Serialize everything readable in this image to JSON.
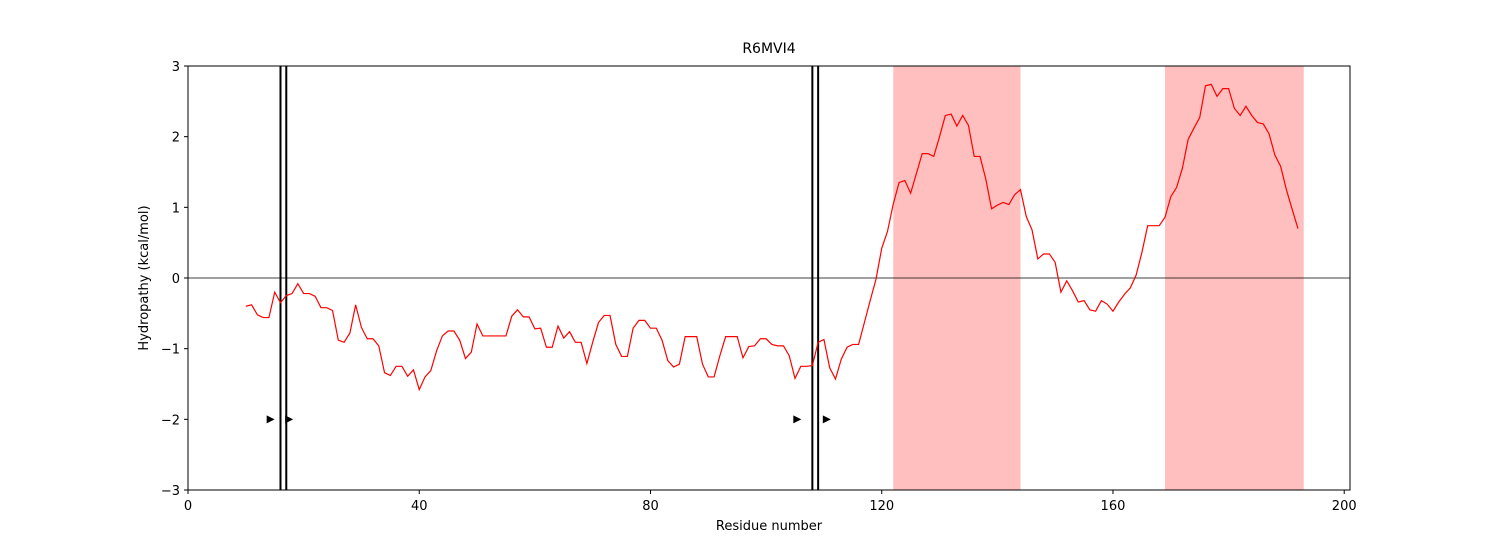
{
  "chart_data": {
    "type": "line",
    "title": "R6MVI4",
    "x_label": "Residue number",
    "y_label": "Hydropathy (kcal/mol)",
    "x": [
      10,
      11,
      12,
      13,
      14,
      15,
      16,
      17,
      18,
      19,
      20,
      21,
      22,
      23,
      24,
      25,
      26,
      27,
      28,
      29,
      30,
      31,
      32,
      33,
      34,
      35,
      36,
      37,
      38,
      39,
      40,
      41,
      42,
      43,
      44,
      45,
      46,
      47,
      48,
      49,
      50,
      51,
      52,
      53,
      54,
      55,
      56,
      57,
      58,
      59,
      60,
      61,
      62,
      63,
      64,
      65,
      66,
      67,
      68,
      69,
      70,
      71,
      72,
      73,
      74,
      75,
      76,
      77,
      78,
      79,
      80,
      81,
      82,
      83,
      84,
      85,
      86,
      87,
      88,
      89,
      90,
      91,
      92,
      93,
      94,
      95,
      96,
      97,
      98,
      99,
      100,
      101,
      102,
      103,
      104,
      105,
      106,
      107,
      108,
      109,
      110,
      111,
      112,
      113,
      114,
      115,
      116,
      117,
      118,
      119,
      120,
      121,
      122,
      123,
      124,
      125,
      126,
      127,
      128,
      129,
      130,
      131,
      132,
      133,
      134,
      135,
      136,
      137,
      138,
      139,
      140,
      141,
      142,
      143,
      144,
      145,
      146,
      147,
      148,
      149,
      150,
      151,
      152,
      153,
      154,
      155,
      156,
      157,
      158,
      159,
      160,
      161,
      162,
      163,
      164,
      165,
      166,
      167,
      168,
      169,
      170,
      171,
      172,
      173,
      174,
      175,
      176,
      177,
      178,
      179,
      180,
      181,
      182,
      183,
      184,
      185,
      186,
      187,
      188,
      189,
      190,
      191,
      192
    ],
    "values": [
      -0.4,
      -0.38,
      -0.52,
      -0.56,
      -0.56,
      -0.2,
      -0.35,
      -0.25,
      -0.22,
      -0.08,
      -0.22,
      -0.22,
      -0.26,
      -0.42,
      -0.42,
      -0.46,
      -0.88,
      -0.91,
      -0.78,
      -0.38,
      -0.7,
      -0.86,
      -0.86,
      -0.96,
      -1.34,
      -1.38,
      -1.25,
      -1.25,
      -1.39,
      -1.3,
      -1.58,
      -1.4,
      -1.31,
      -1.03,
      -0.82,
      -0.75,
      -0.75,
      -0.88,
      -1.14,
      -1.05,
      -0.65,
      -0.82,
      -0.82,
      -0.82,
      -0.82,
      -0.82,
      -0.54,
      -0.45,
      -0.55,
      -0.55,
      -0.72,
      -0.71,
      -0.98,
      -0.98,
      -0.68,
      -0.85,
      -0.76,
      -0.91,
      -0.91,
      -1.21,
      -0.91,
      -0.63,
      -0.53,
      -0.53,
      -0.94,
      -1.11,
      -1.11,
      -0.71,
      -0.6,
      -0.6,
      -0.71,
      -0.71,
      -0.88,
      -1.17,
      -1.26,
      -1.22,
      -0.83,
      -0.83,
      -0.83,
      -1.22,
      -1.4,
      -1.4,
      -1.1,
      -0.83,
      -0.83,
      -0.83,
      -1.13,
      -0.97,
      -0.96,
      -0.86,
      -0.86,
      -0.94,
      -0.96,
      -0.96,
      -1.1,
      -1.42,
      -1.25,
      -1.25,
      -1.24,
      -0.91,
      -0.87,
      -1.27,
      -1.43,
      -1.15,
      -0.98,
      -0.94,
      -0.94,
      -0.63,
      -0.32,
      -0.02,
      0.42,
      0.66,
      1.05,
      1.35,
      1.38,
      1.2,
      1.48,
      1.76,
      1.76,
      1.72,
      2.0,
      2.3,
      2.32,
      2.15,
      2.3,
      2.16,
      1.72,
      1.72,
      1.4,
      0.98,
      1.03,
      1.07,
      1.04,
      1.18,
      1.25,
      0.87,
      0.68,
      0.27,
      0.34,
      0.34,
      0.22,
      -0.2,
      -0.04,
      -0.18,
      -0.34,
      -0.32,
      -0.45,
      -0.47,
      -0.32,
      -0.37,
      -0.47,
      -0.34,
      -0.23,
      -0.14,
      0.04,
      0.36,
      0.74,
      0.74,
      0.74,
      0.86,
      1.15,
      1.28,
      1.55,
      1.96,
      2.12,
      2.27,
      2.72,
      2.74,
      2.57,
      2.68,
      2.68,
      2.4,
      2.3,
      2.43,
      2.3,
      2.2,
      2.18,
      2.04,
      1.74,
      1.58,
      1.25,
      0.97,
      0.7
    ],
    "color": "#ff0000",
    "spans": [
      [
        122,
        144
      ],
      [
        169,
        193
      ]
    ],
    "span_color": "#ffbfbf",
    "vlines": [
      16,
      17,
      108,
      109
    ],
    "markers": {
      "x": [
        14.3,
        17.5,
        105.4,
        110.5
      ],
      "y": [
        -2,
        -2,
        -2,
        -2
      ]
    },
    "hline": 0,
    "xlim": [
      0,
      201
    ],
    "ylim": [
      -3,
      3
    ],
    "xticks": [
      0,
      40,
      80,
      120,
      160,
      200
    ],
    "yticks": [
      {
        "value": -3,
        "label": "−3"
      },
      {
        "value": -2,
        "label": "−2"
      },
      {
        "value": -1,
        "label": "−1"
      },
      0,
      1,
      2,
      3
    ]
  }
}
